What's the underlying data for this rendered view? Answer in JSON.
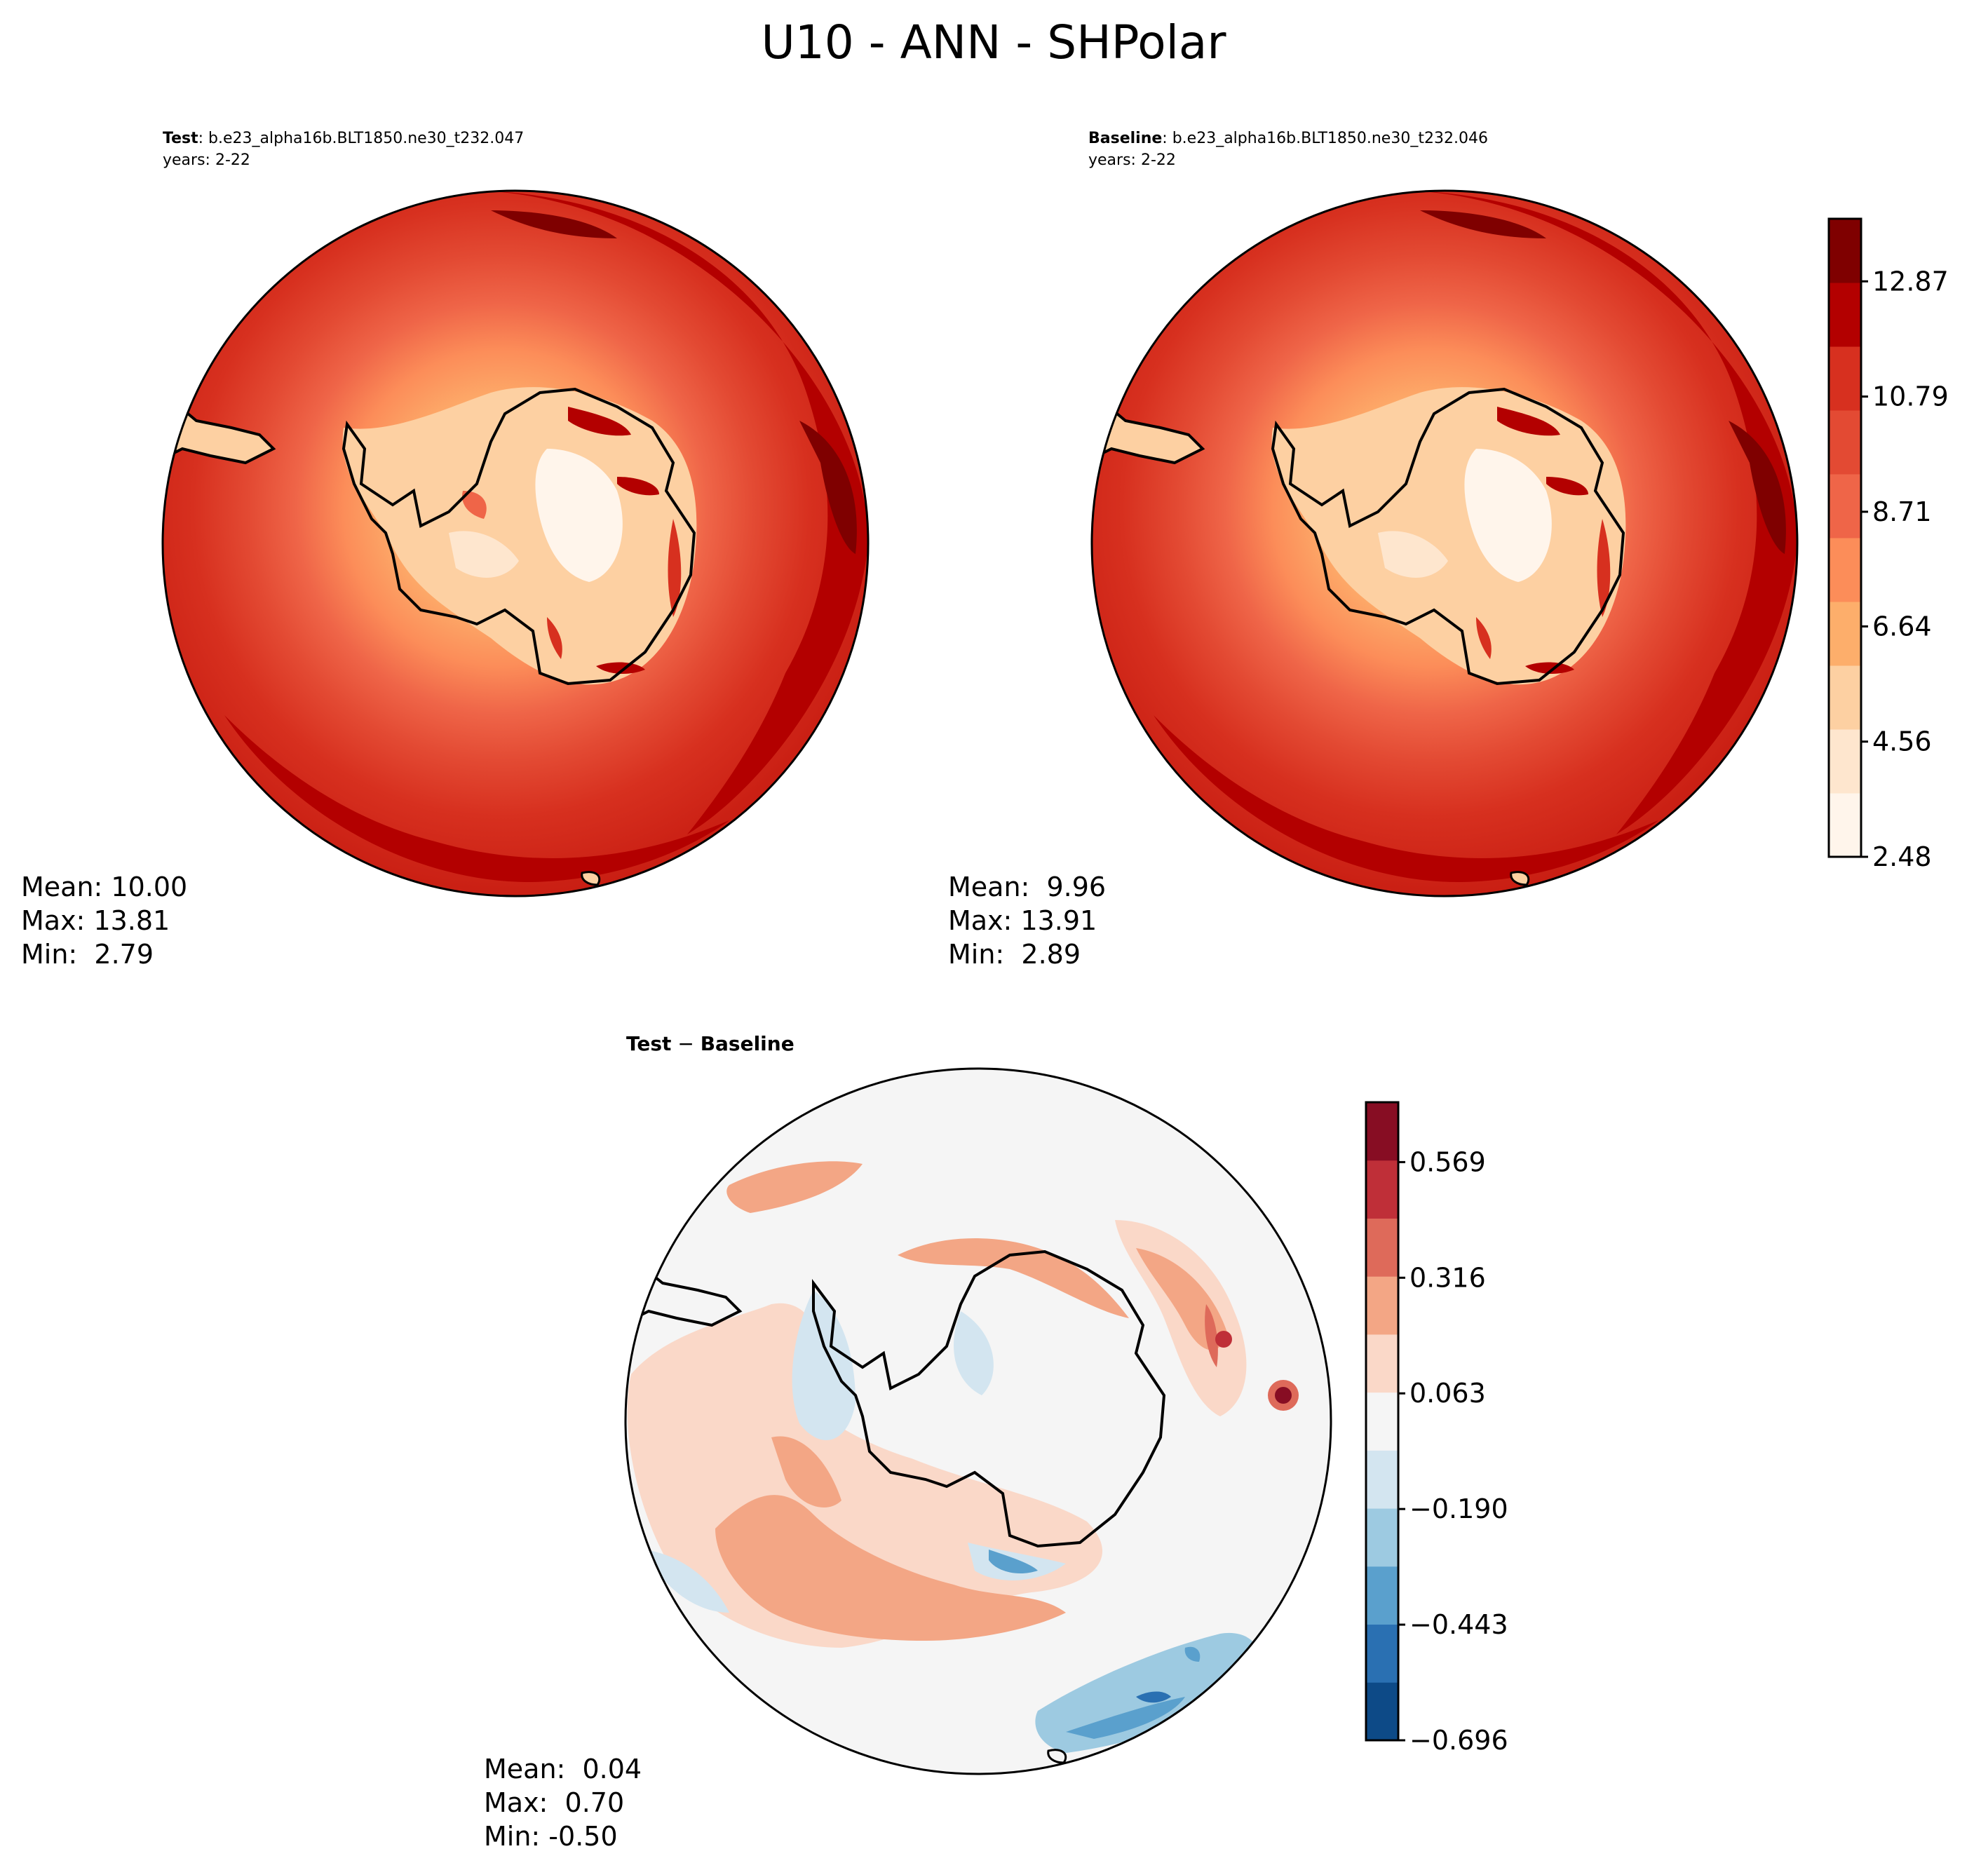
{
  "figure": {
    "suptitle": "U10 - ANN - SHPolar"
  },
  "chart_data": [
    {
      "type": "heatmap",
      "projection": "south-polar-stereographic",
      "panel_label_bold": "Test",
      "panel_label_rest": ": b.e23_alpha16b.BLT1850.ne30_t232.047",
      "years": "years: 2-22",
      "stats": [
        "Mean: 10.00",
        "Max: 13.81",
        "Min:  2.79"
      ],
      "colormap": "Reds",
      "colorbar": "shared"
    },
    {
      "type": "heatmap",
      "projection": "south-polar-stereographic",
      "panel_label_bold": "Baseline",
      "panel_label_rest": ": b.e23_alpha16b.BLT1850.ne30_t232.046",
      "years": "years: 2-22",
      "stats": [
        "Mean:  9.96",
        "Max: 13.91",
        "Min:  2.89"
      ],
      "colormap": "Reds",
      "colorbar_ticks": [
        "12.87",
        "10.79",
        "8.71",
        "6.64",
        "4.56",
        "2.48"
      ],
      "colorbar_range": [
        2.48,
        14.0
      ],
      "colors": [
        "#fff5eb",
        "#fee6ce",
        "#fdd0a2",
        "#fdae6b",
        "#fc8d59",
        "#ef6548",
        "#e34a33",
        "#d7301f",
        "#b30000",
        "#7f0000"
      ]
    },
    {
      "type": "heatmap",
      "projection": "south-polar-stereographic",
      "panel_label_bold": "Test",
      "panel_label_sep": " − ",
      "panel_label_bold2": "Baseline",
      "stats": [
        "Mean:  0.04",
        "Max:  0.70",
        "Min: -0.50"
      ],
      "colormap": "RdBu_r",
      "colorbar_ticks": [
        "0.569",
        "0.316",
        "0.063",
        "−0.190",
        "−0.443",
        "−0.696"
      ],
      "colorbar_range": [
        -0.696,
        0.7
      ],
      "colors": [
        "#0d4a87",
        "#2a70b2",
        "#5aa0cd",
        "#9dcae1",
        "#d3e5f0",
        "#f5f5f5",
        "#fad8c8",
        "#f3a685",
        "#de6a5a",
        "#bf2f38",
        "#870d23"
      ]
    }
  ]
}
